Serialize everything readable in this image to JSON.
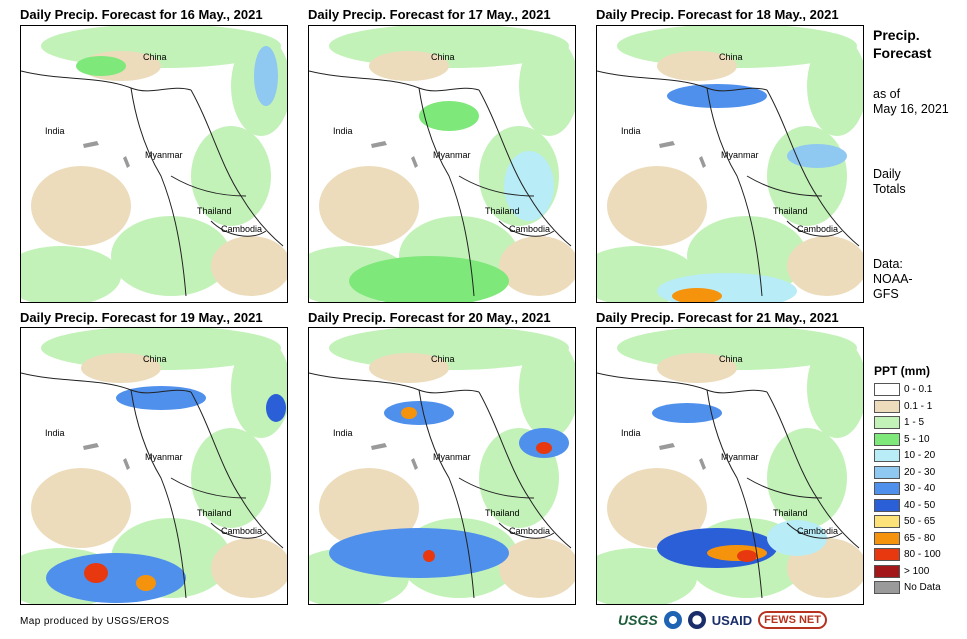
{
  "panels": [
    {
      "title": "Daily Precip. Forecast for 16 May., 2021"
    },
    {
      "title": "Daily Precip. Forecast for 17 May., 2021"
    },
    {
      "title": "Daily Precip. Forecast for 18 May., 2021"
    },
    {
      "title": "Daily Precip. Forecast for 19 May., 2021"
    },
    {
      "title": "Daily Precip. Forecast for 20 May., 2021"
    },
    {
      "title": "Daily Precip. Forecast for 21 May., 2021"
    }
  ],
  "countries": {
    "china": "China",
    "india": "India",
    "myanmar": "Myanmar",
    "thailand": "Thailand",
    "cambodia": "Cambodia"
  },
  "sidebar": {
    "heading_line1": "Precip.",
    "heading_line2": "Forecast",
    "asof_line1": "as of",
    "asof_line2": "May 16, 2021",
    "totals_line1": "Daily",
    "totals_line2": "Totals",
    "data_line1": "Data:",
    "data_line2": "NOAA-",
    "data_line3": "GFS"
  },
  "legend": {
    "title": "PPT (mm)",
    "items": [
      {
        "label": "0 - 0.1",
        "color": "#ffffff"
      },
      {
        "label": "0.1 - 1",
        "color": "#ecdcbc"
      },
      {
        "label": "1 - 5",
        "color": "#c2f2b8"
      },
      {
        "label": "5 - 10",
        "color": "#7fe87a"
      },
      {
        "label": "10 - 20",
        "color": "#b8ecf6"
      },
      {
        "label": "20 - 30",
        "color": "#8fc8f0"
      },
      {
        "label": "30 - 40",
        "color": "#4f90ec"
      },
      {
        "label": "40 - 50",
        "color": "#2a5fd8"
      },
      {
        "label": "50 - 65",
        "color": "#fde27a"
      },
      {
        "label": "65 - 80",
        "color": "#f5940c"
      },
      {
        "label": "80 - 100",
        "color": "#e8380f"
      },
      {
        "label": "> 100",
        "color": "#a3171b"
      },
      {
        "label": "No Data",
        "color": "#9a9a9a"
      }
    ]
  },
  "footer": {
    "credit": "Map produced by USGS/EROS",
    "logo_usgs": "USGS",
    "logo_usaid": "USAID",
    "logo_fews": "FEWS NET"
  }
}
